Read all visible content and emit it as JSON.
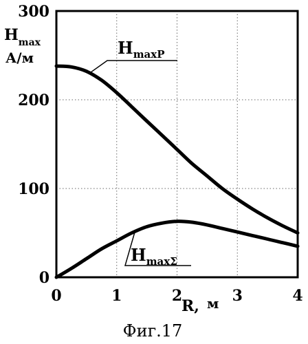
{
  "chart_data": {
    "type": "line",
    "caption": "Фиг.17",
    "xlabel": "R,",
    "xunit": "м",
    "ylabel": {
      "main": "H",
      "sub": "max"
    },
    "yunit": "А/м",
    "xlim": [
      0,
      4
    ],
    "ylim": [
      0,
      300
    ],
    "xticks": [
      0,
      1,
      2,
      3,
      4
    ],
    "yticks": [
      0,
      100,
      200,
      300
    ],
    "grid": "dotted",
    "series": [
      {
        "name": "HmaxP",
        "label_main": "H",
        "label_sub": "maxP",
        "x": [
          0,
          0.25,
          0.5,
          0.75,
          1.0,
          1.25,
          1.5,
          1.75,
          2.0,
          2.25,
          2.5,
          2.75,
          3.0,
          3.25,
          3.5,
          3.75,
          4.0
        ],
        "y": [
          238,
          237,
          232,
          222,
          208,
          192,
          176,
          160,
          144,
          128,
          114,
          100,
          88,
          77,
          67,
          58,
          50
        ]
      },
      {
        "name": "HmaxΣ",
        "label_main": "H",
        "label_sub": "maxΣ",
        "x": [
          0,
          0.25,
          0.5,
          0.75,
          1.0,
          1.25,
          1.5,
          1.75,
          2.0,
          2.25,
          2.5,
          2.75,
          3.0,
          3.25,
          3.5,
          3.75,
          4.0
        ],
        "y": [
          0,
          10,
          21,
          32,
          41,
          50,
          57,
          61,
          63,
          62,
          59,
          55,
          51,
          47,
          43,
          39,
          35
        ]
      }
    ]
  }
}
